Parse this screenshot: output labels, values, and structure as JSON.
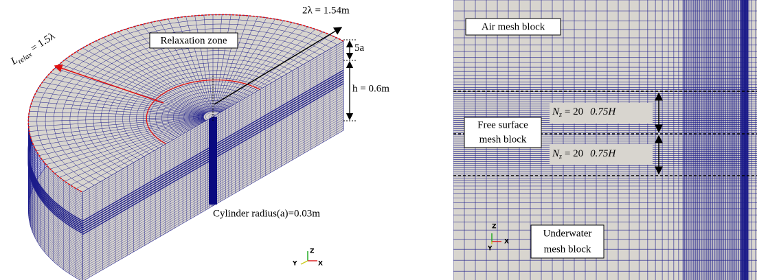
{
  "left": {
    "annotations": {
      "wavelength": "2λ = 1.54m",
      "top_layer": "5a",
      "depth": "h = 0.6m",
      "relax_length": {
        "symbol": "L",
        "subscript": "relax",
        "value": "= 1.5λ"
      },
      "relaxation_zone": "Relaxation zone",
      "cylinder": "Cylinder radius(a)=0.03m"
    },
    "axes": [
      "Z",
      "Y",
      "X"
    ]
  },
  "right": {
    "blocks": [
      "Air mesh block",
      [
        "Free surface",
        "mesh block"
      ],
      [
        "Underwater",
        "mesh block"
      ]
    ],
    "cells": [
      {
        "symbol": "N",
        "subscript": "z",
        "value": "= 20",
        "height": "0.75H"
      },
      {
        "symbol": "N",
        "subscript": "z",
        "value": "= 20",
        "height": "0.75H"
      }
    ],
    "axes": [
      "Z",
      "Y",
      "X"
    ]
  }
}
